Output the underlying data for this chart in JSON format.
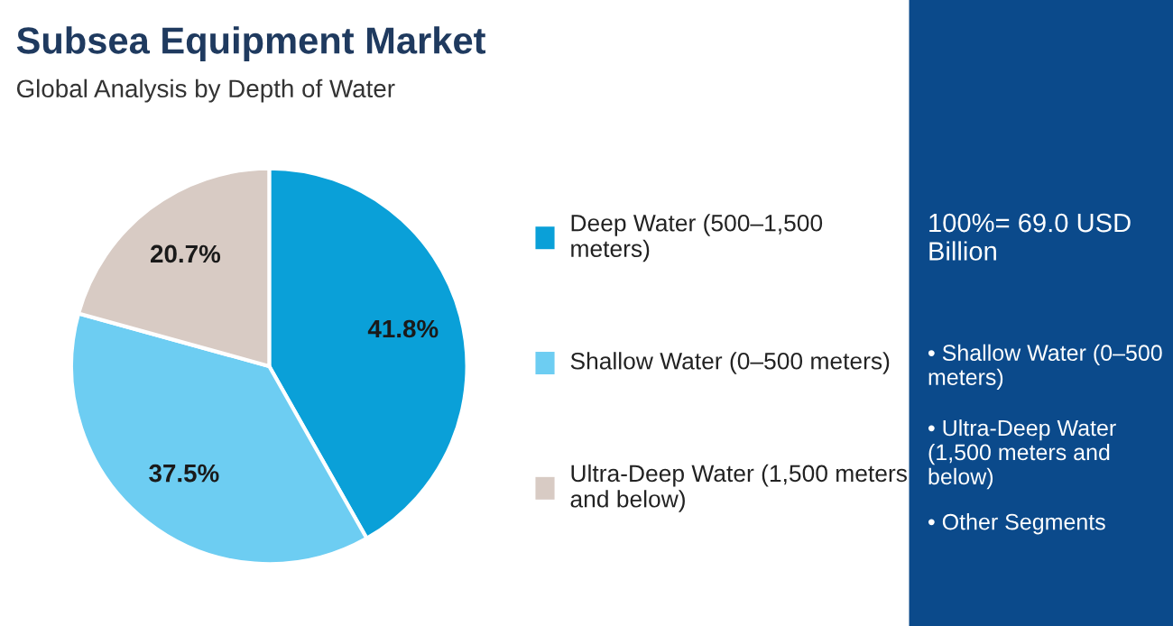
{
  "chart_data": {
    "type": "pie",
    "title": "Subsea Equipment Market",
    "subtitle": "Global Analysis by Depth of Water",
    "categories": [
      "Deep Water (500–1,500 meters)",
      "Shallow Water (0–500 meters)",
      "Ultra-Deep Water (1,500 meters and below)"
    ],
    "values": [
      41.8,
      37.5,
      20.7
    ],
    "value_labels": [
      "41.8%",
      "37.5%",
      "20.7%"
    ],
    "colors": [
      "#0aa0d8",
      "#6dcdf2",
      "#d8cbc4"
    ],
    "legend": "right",
    "annotations": [
      "100%= 69.0 USD Billion",
      "• Shallow Water (0–500 meters)",
      "• Ultra-Deep Water (1,500 meters and below)",
      "• Other Segments"
    ]
  }
}
